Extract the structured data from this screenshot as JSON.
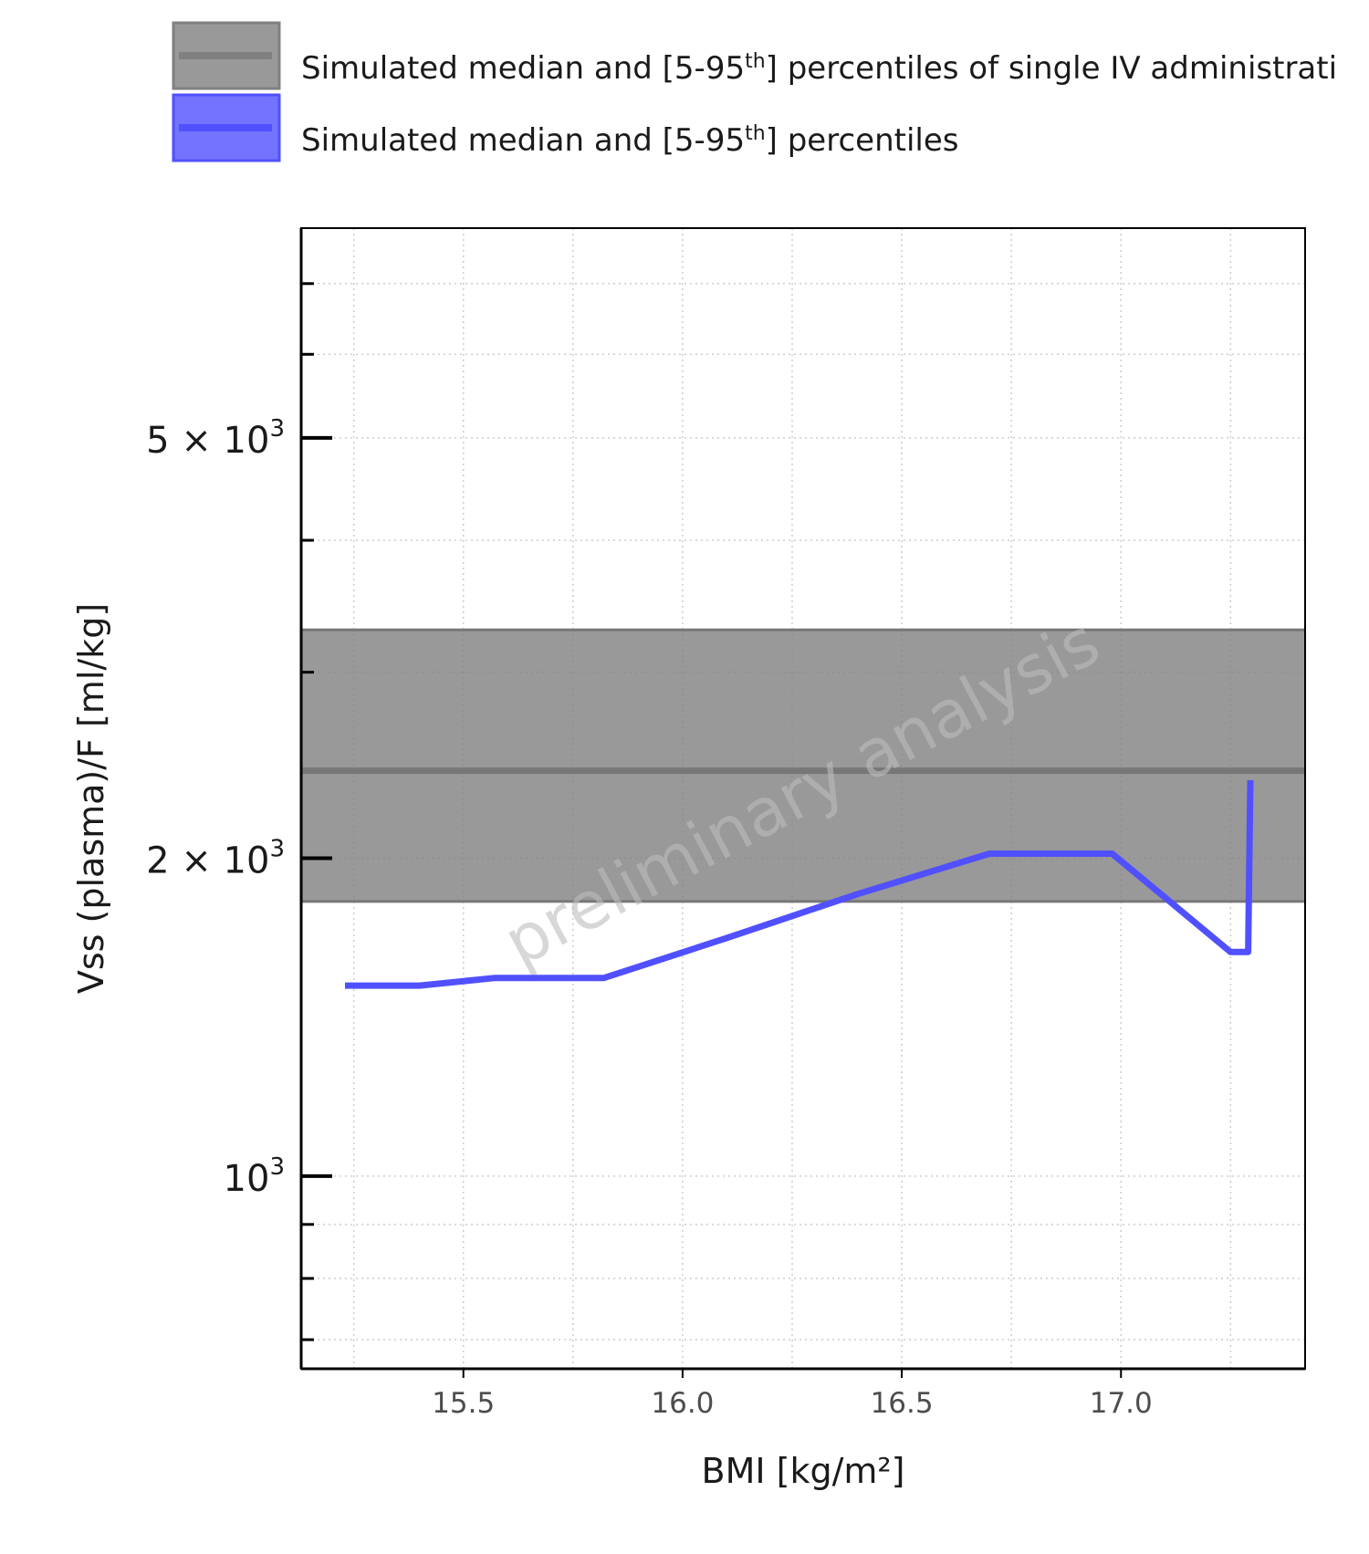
{
  "chart_data": {
    "type": "line",
    "title": "",
    "xlabel": "BMI [kg/m²]",
    "ylabel": "Vss (plasma)/F [ml/kg]",
    "y_scale": "log",
    "xlim": [
      15.13,
      17.42
    ],
    "ylim": [
      657,
      7900
    ],
    "x_ticks": [
      {
        "value": 15.5,
        "label": "15.5"
      },
      {
        "value": 16.0,
        "label": "16.0"
      },
      {
        "value": 16.5,
        "label": "16.5"
      },
      {
        "value": 17.0,
        "label": "17.0"
      }
    ],
    "y_ticks": [
      {
        "value": 1000,
        "mantissa": "",
        "exp": "3"
      },
      {
        "value": 2000,
        "mantissa": "2",
        "exp": "3"
      },
      {
        "value": 5000,
        "mantissa": "5",
        "exp": "3"
      }
    ],
    "y_minor_ticks": [
      700,
      800,
      900,
      3000,
      4000,
      6000,
      7000
    ],
    "grid": true,
    "legend_position": "top",
    "legend": [
      {
        "label_main": "Simulated median and [5-95",
        "label_sup": "th",
        "label_tail": "] percentiles of single IV administrati",
        "color": "#808080"
      },
      {
        "label_main": "Simulated median and [5-95",
        "label_sup": "th",
        "label_tail": "] percentiles",
        "color": "#5050ff"
      }
    ],
    "reference_band": {
      "median": 2420,
      "lower": 1820,
      "upper": 3290,
      "color": "#808080"
    },
    "series": [
      {
        "color": "#5050ff",
        "x": [
          15.23,
          15.4,
          15.57,
          15.82,
          16.1,
          16.4,
          16.7,
          16.98,
          17.25,
          17.29,
          17.295
        ],
        "y": [
          1515,
          1515,
          1540,
          1540,
          1680,
          1850,
          2020,
          2020,
          1630,
          1630,
          2370
        ]
      }
    ],
    "watermark": "preliminary analysis"
  }
}
